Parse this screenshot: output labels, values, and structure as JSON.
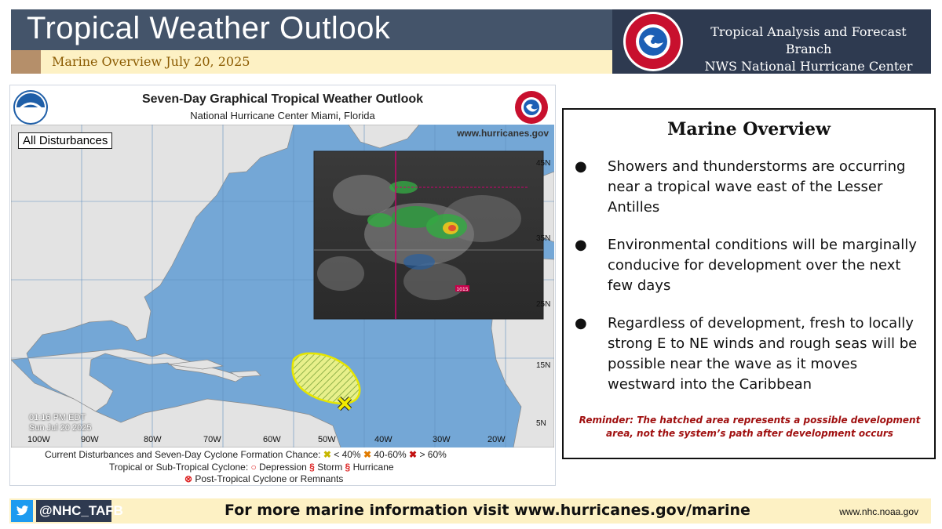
{
  "header": {
    "title": "Tropical Weather Outlook",
    "subtitle": "Marine Overview July 20, 2025",
    "branch_line1": "Tropical Analysis and Forecast Branch",
    "branch_line2": "NWS National Hurricane Center",
    "logo_text": "NATIONAL WEATHER SERVICE"
  },
  "graphic": {
    "title": "Seven-Day Graphical Tropical Weather Outlook",
    "subtitle": "National Hurricane Center  Miami, Florida",
    "website": "www.hurricanes.gov",
    "filter_label": "All Disturbances",
    "time_line1": "01:16 PM EDT",
    "time_line2": "Sun Jul 20 2025",
    "longitudes": [
      "100W",
      "90W",
      "80W",
      "70W",
      "60W",
      "50W",
      "40W",
      "30W",
      "20W"
    ],
    "latitudes": [
      "45N",
      "35N",
      "25N",
      "15N",
      "5N"
    ],
    "satellite_label_1": "1015",
    "legend": {
      "row1_label": "Current Disturbances and Seven-Day Cyclone Formation Chance:",
      "low": "< 40%",
      "medium": "40-60%",
      "high": "> 60%",
      "row2_label": "Tropical or Sub-Tropical Cyclone:",
      "depression": "Depression",
      "storm": "Storm",
      "hurricane": "Hurricane",
      "row3_label": "Post-Tropical Cyclone or Remnants"
    },
    "colors": {
      "ocean": "#74a7d6",
      "land": "#e3e3e3",
      "hatch": "#f0f060",
      "hatch_line": "#9bbb59",
      "marker": "#f2ea00"
    }
  },
  "panel": {
    "title": "Marine Overview",
    "bullets": [
      "Showers and thunderstorms are occurring near a tropical wave east of the Lesser Antilles",
      "Environmental conditions will be marginally conducive for development over the next few days",
      "Regardless of development, fresh to locally strong E to NE winds and rough seas will be possible near the wave as it moves westward into the Caribbean"
    ],
    "reminder_label": "Reminder:",
    "reminder_text": " The hatched area represents a possible development area, not the system’s path after development occurs"
  },
  "footer": {
    "handle": "@NHC_TAFB",
    "message": "For more marine information visit www.hurricanes.gov/marine",
    "url": "www.nhc.noaa.gov"
  }
}
